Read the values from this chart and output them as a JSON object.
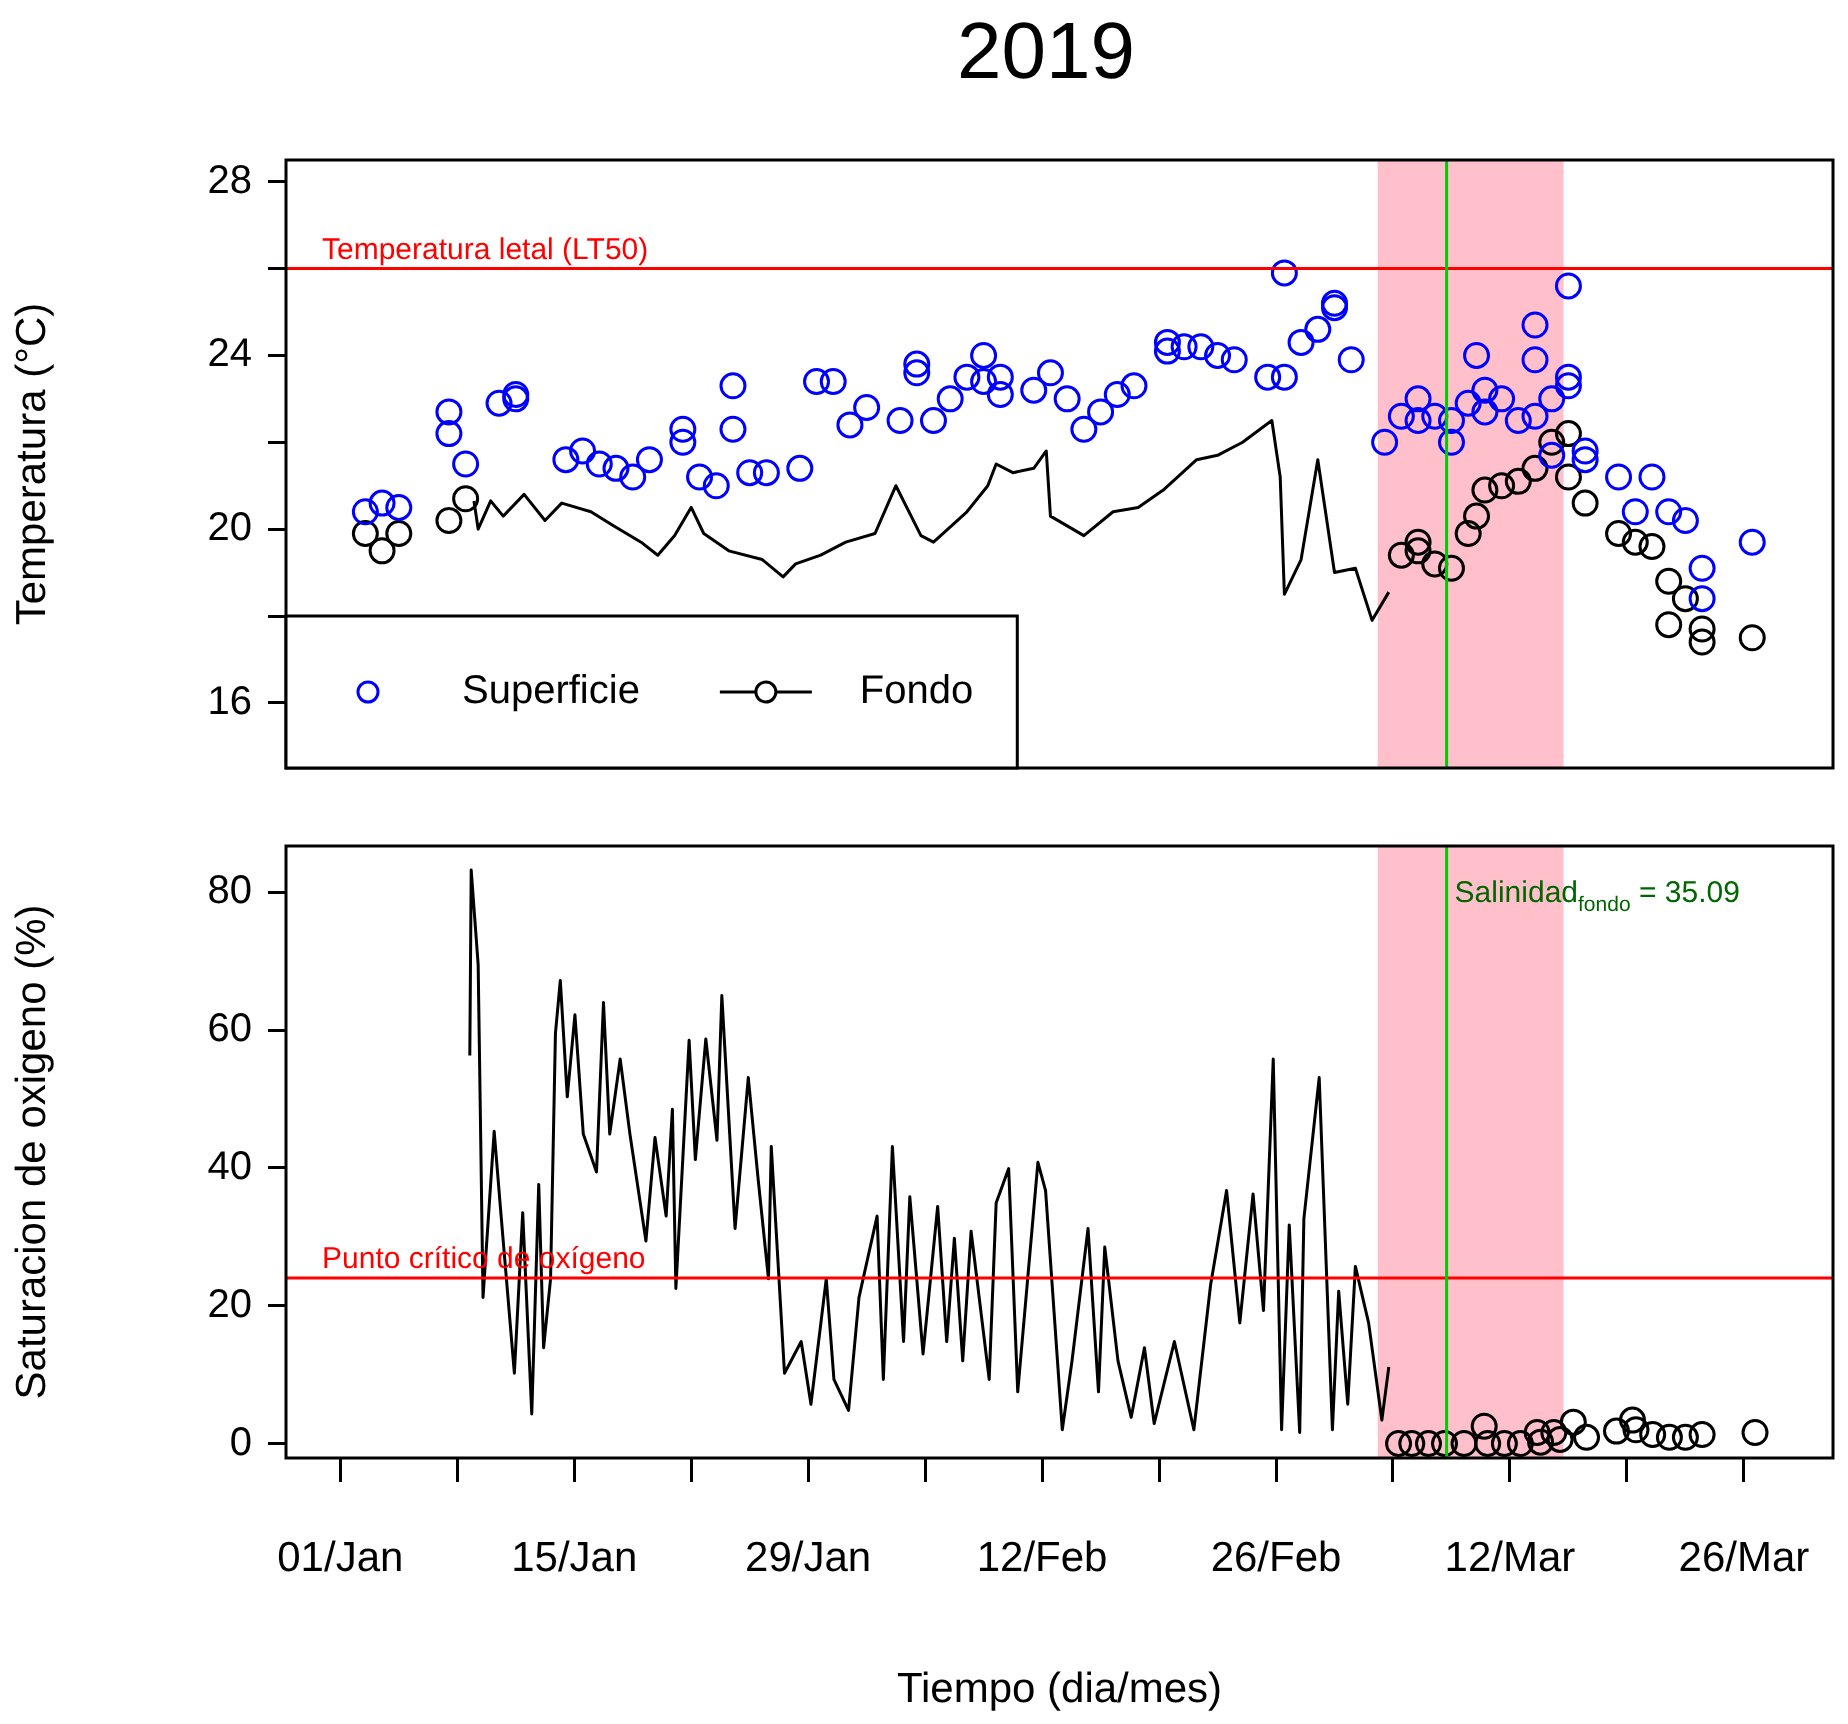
{
  "chart_data": [
    {
      "type": "scatter",
      "title": "2019",
      "ylabel": "Temperatura (°C)",
      "xlim": [
        "2018-12-28T18:00",
        "2019-03-31T08:00"
      ],
      "ylim": [
        14.5,
        28.5
      ],
      "yticks": [
        16,
        {
          "value": 18,
          "label": null
        },
        20,
        {
          "value": 22,
          "label": null
        },
        24,
        {
          "value": 26,
          "label": null
        },
        28
      ],
      "tick_labels": "y",
      "grid": false,
      "legend": "bottom left",
      "ref_lines": [
        {
          "axis": "y",
          "value": 26,
          "label": "Temperatura letal (LT50)",
          "color": "#ff0000"
        },
        {
          "axis": "x",
          "value": "2019-03-08T05:00",
          "color": "#00cc00"
        }
      ],
      "bands": [
        {
          "axis": "x",
          "from": "2019-03-04T02:00",
          "to": "2019-03-15T05:00",
          "color": "#ffc0cb"
        }
      ],
      "series": [
        {
          "name": "Superficie",
          "marker": "circle",
          "color": "#0000ff",
          "x": [
            "2019-01-02T12:00",
            "2019-01-03T12:00",
            "2019-01-04T12:00",
            "2019-01-07T12:00",
            "2019-01-07T12:00",
            "2019-01-08T12:00",
            "2019-01-10T12:00",
            "2019-01-11T12:00",
            "2019-01-11T12:00",
            "2019-01-14T12:00",
            "2019-01-15T12:00",
            "2019-01-16T12:00",
            "2019-01-17T12:00",
            "2019-01-18T12:00",
            "2019-01-19T12:00",
            "2019-01-21T12:00",
            "2019-01-21T12:00",
            "2019-01-22T12:00",
            "2019-01-23T12:00",
            "2019-01-24T12:00",
            "2019-01-24T12:00",
            "2019-01-25T12:00",
            "2019-01-26T12:00",
            "2019-01-28T12:00",
            "2019-01-29T12:00",
            "2019-01-30T12:00",
            "2019-01-31T12:00",
            "2019-02-01T12:00",
            "2019-02-03T12:00",
            "2019-02-04T12:00",
            "2019-02-04T12:00",
            "2019-02-05T12:00",
            "2019-02-06T12:00",
            "2019-02-07T12:00",
            "2019-02-08T12:00",
            "2019-02-08T12:00",
            "2019-02-09T12:00",
            "2019-02-09T12:00",
            "2019-02-11T12:00",
            "2019-02-12T12:00",
            "2019-02-13T12:00",
            "2019-02-14T12:00",
            "2019-02-15T12:00",
            "2019-02-16T12:00",
            "2019-02-17T12:00",
            "2019-02-19T12:00",
            "2019-02-19T12:00",
            "2019-02-20T12:00",
            "2019-02-21T12:00",
            "2019-02-22T12:00",
            "2019-02-23T12:00",
            "2019-02-25T12:00",
            "2019-02-26T12:00",
            "2019-02-26T12:00",
            "2019-02-27T12:00",
            "2019-02-28T12:00",
            "2019-03-01T12:00",
            "2019-03-01T12:00",
            "2019-03-02T12:00",
            "2019-03-04T12:00",
            "2019-03-05T12:00",
            "2019-03-06T12:00",
            "2019-03-06T12:00",
            "2019-03-07T12:00",
            "2019-03-08T12:00",
            "2019-03-08T12:00",
            "2019-03-09T12:00",
            "2019-03-10T00:00",
            "2019-03-10T12:00",
            "2019-03-10T12:00",
            "2019-03-11T12:00",
            "2019-03-12T12:00",
            "2019-03-13T12:00",
            "2019-03-13T12:00",
            "2019-03-13T12:00",
            "2019-03-14T12:00",
            "2019-03-14T12:00",
            "2019-03-15T12:00",
            "2019-03-15T12:00",
            "2019-03-15T12:00",
            "2019-03-16T12:00",
            "2019-03-16T12:00",
            "2019-03-18T12:00",
            "2019-03-19T12:00",
            "2019-03-20T12:00",
            "2019-03-21T12:00",
            "2019-03-22T12:00",
            "2019-03-23T12:00",
            "2019-03-23T12:00",
            "2019-03-26T12:00"
          ],
          "values": [
            20.4,
            20.6,
            20.5,
            22.7,
            22.2,
            21.5,
            22.9,
            23.0,
            23.1,
            21.6,
            21.8,
            21.5,
            21.4,
            21.2,
            21.6,
            22.3,
            22.0,
            21.2,
            21.0,
            23.3,
            22.3,
            21.3,
            21.3,
            21.4,
            23.4,
            23.4,
            22.4,
            22.8,
            22.5,
            23.8,
            23.6,
            22.5,
            23.0,
            23.5,
            23.4,
            24.0,
            23.5,
            23.1,
            23.2,
            23.6,
            23.0,
            22.3,
            22.7,
            23.1,
            23.3,
            24.3,
            24.1,
            24.2,
            24.2,
            24.0,
            23.9,
            23.5,
            23.5,
            25.9,
            24.3,
            24.6,
            25.1,
            25.2,
            23.9,
            22.0,
            22.6,
            23.0,
            22.5,
            22.6,
            22.5,
            22.0,
            22.9,
            24.0,
            23.2,
            22.7,
            23.0,
            22.5,
            24.7,
            23.9,
            22.6,
            23.0,
            21.7,
            25.6,
            23.5,
            23.3,
            21.8,
            21.6,
            21.2,
            20.4,
            21.2,
            20.4,
            20.2,
            19.1,
            18.4,
            19.7
          ]
        },
        {
          "name": "Fondo",
          "type": "line",
          "marker": "none",
          "color": "#000000",
          "x": [
            "2019-01-09T00:00",
            "2019-01-09T06:00",
            "2019-01-10T00:00",
            "2019-01-10T18:00",
            "2019-01-12T00:00",
            "2019-01-13T06:00",
            "2019-01-14T06:00",
            "2019-01-16T00:00",
            "2019-01-17T06:00",
            "2019-01-19T00:00",
            "2019-01-20T00:00",
            "2019-01-21T00:00",
            "2019-01-22T00:00",
            "2019-01-22T18:00",
            "2019-01-24T06:00",
            "2019-01-26T06:00",
            "2019-01-27T12:00",
            "2019-01-28T06:00",
            "2019-01-29T18:00",
            "2019-01-31T06:00",
            "2019-02-02T00:00",
            "2019-02-03T06:00",
            "2019-02-04T18:00",
            "2019-02-05T12:00",
            "2019-02-07T12:00",
            "2019-02-08T18:00",
            "2019-02-09T06:00",
            "2019-02-10T06:00",
            "2019-02-11T12:00",
            "2019-02-12T06:00",
            "2019-02-12T12:00",
            "2019-02-14T12:00",
            "2019-02-16T06:00",
            "2019-02-17T18:00",
            "2019-02-19T06:00",
            "2019-02-21T06:00",
            "2019-02-22T12:00",
            "2019-02-24T00:00",
            "2019-02-25T18:00",
            "2019-02-26T06:00",
            "2019-02-26T12:00",
            "2019-02-27T12:00",
            "2019-02-28T12:00",
            "2019-03-01T12:00",
            "2019-03-02T18:00",
            "2019-03-03T18:00",
            "2019-03-04T18:00"
          ],
          "values": [
            20.65,
            20.0,
            20.65,
            20.3,
            20.8,
            20.2,
            20.6,
            20.4,
            20.1,
            19.7,
            19.4,
            19.85,
            20.5,
            19.9,
            19.5,
            19.3,
            18.9,
            19.2,
            19.4,
            19.7,
            19.9,
            21.0,
            19.85,
            19.7,
            20.4,
            21.0,
            21.5,
            21.3,
            21.4,
            21.8,
            20.3,
            19.85,
            20.4,
            20.5,
            20.9,
            21.6,
            21.7,
            22.0,
            22.5,
            21.2,
            18.5,
            19.3,
            21.6,
            19.0,
            19.1,
            17.9,
            18.55
          ]
        },
        {
          "marker": "circle",
          "color": "#000000",
          "x": [
            "2019-01-02T12:00",
            "2019-01-03T12:00",
            "2019-01-04T12:00",
            "2019-01-07T12:00",
            "2019-01-08T12:00",
            "2019-03-05T12:00",
            "2019-03-06T12:00",
            "2019-03-06T12:00",
            "2019-03-07T12:00",
            "2019-03-08T12:00",
            "2019-03-09T12:00",
            "2019-03-10T00:00",
            "2019-03-10T12:00",
            "2019-03-11T12:00",
            "2019-03-12T12:00",
            "2019-03-13T12:00",
            "2019-03-14T12:00",
            "2019-03-15T12:00",
            "2019-03-15T12:00",
            "2019-03-16T12:00",
            "2019-03-18T12:00",
            "2019-03-19T12:00",
            "2019-03-20T12:00",
            "2019-03-21T12:00",
            "2019-03-21T12:00",
            "2019-03-22T12:00",
            "2019-03-23T12:00",
            "2019-03-23T12:00",
            "2019-03-26T12:00"
          ],
          "values": [
            19.9,
            19.5,
            19.9,
            20.2,
            20.7,
            19.4,
            19.7,
            19.5,
            19.2,
            19.1,
            19.9,
            20.3,
            20.9,
            21.0,
            21.1,
            21.4,
            22.0,
            22.2,
            21.2,
            20.6,
            19.9,
            19.7,
            19.6,
            18.8,
            17.8,
            18.4,
            17.7,
            17.4,
            17.5
          ]
        }
      ]
    },
    {
      "type": "line",
      "xlabel": "Tiempo (dia/mes)",
      "ylabel": "Saturacion de oxigeno (%)",
      "xlim": [
        "2018-12-28T18:00",
        "2019-03-31T08:00"
      ],
      "ylim": [
        -2.1,
        86.7
      ],
      "xticks": [
        {
          "value": "2019-01-01",
          "label": "01/Jan"
        },
        {
          "value": "2019-01-08",
          "label": null
        },
        {
          "value": "2019-01-15",
          "label": "15/Jan"
        },
        {
          "value": "2019-01-22",
          "label": null
        },
        {
          "value": "2019-01-29",
          "label": "29/Jan"
        },
        {
          "value": "2019-02-05",
          "label": null
        },
        {
          "value": "2019-02-12",
          "label": "12/Feb"
        },
        {
          "value": "2019-02-19",
          "label": null
        },
        {
          "value": "2019-02-26",
          "label": "26/Feb"
        },
        {
          "value": "2019-03-05",
          "label": null
        },
        {
          "value": "2019-03-12",
          "label": "12/Mar"
        },
        {
          "value": "2019-03-19",
          "label": null
        },
        {
          "value": "2019-03-26",
          "label": "26/Mar"
        }
      ],
      "yticks": [
        0,
        20,
        40,
        60,
        80
      ],
      "grid": false,
      "ref_lines": [
        {
          "axis": "y",
          "value": 24,
          "label": "Punto crítico de oxígeno",
          "color": "#ff0000"
        },
        {
          "axis": "x",
          "value": "2019-03-08T05:00",
          "label": "Salinidad$_{fondo}$ = 35.09",
          "color": "#00cc00"
        }
      ],
      "bands": [
        {
          "axis": "x",
          "from": "2019-03-04T02:00",
          "to": "2019-03-15T05:00",
          "color": "#ffc0cb"
        }
      ],
      "series": [
        {
          "marker": "none",
          "color": "#000000",
          "x": [
            "2019-01-08T18:00",
            "2019-01-08T20:00",
            "2019-01-09T06:00",
            "2019-01-09T13:00",
            "2019-01-10T05:00",
            "2019-01-10T15:00",
            "2019-01-11T10:00",
            "2019-01-11T22:00",
            "2019-01-12T11:00",
            "2019-01-12T21:00",
            "2019-01-13T04:00",
            "2019-01-13T14:00",
            "2019-01-13T21:00",
            "2019-01-14T04:00",
            "2019-01-14T14:00",
            "2019-01-15T01:00",
            "2019-01-15T13:00",
            "2019-01-16T08:00",
            "2019-01-16T18:00",
            "2019-01-17T03:00",
            "2019-01-17T18:00",
            "2019-01-18T08:00",
            "2019-01-19T07:00",
            "2019-01-19T20:00",
            "2019-01-20T12:00",
            "2019-01-20T21:00",
            "2019-01-21T02:00",
            "2019-01-21T21:00",
            "2019-01-22T06:00",
            "2019-01-22T21:00",
            "2019-01-23T13:00",
            "2019-01-23T20:00",
            "2019-01-24T15:00",
            "2019-01-25T10:00",
            "2019-01-26T00:00",
            "2019-01-26T15:00",
            "2019-01-26T19:00",
            "2019-01-27T14:00",
            "2019-01-28T14:00",
            "2019-01-29T04:00",
            "2019-01-30T02:00",
            "2019-01-30T13:00",
            "2019-01-31T10:00",
            "2019-02-01T01:00",
            "2019-02-02T03:00",
            "2019-02-02T12:00",
            "2019-02-03T01:00",
            "2019-02-03T17:00",
            "2019-02-04T02:00",
            "2019-02-04T21:00",
            "2019-02-05T18:00",
            "2019-02-06T07:00",
            "2019-02-06T18:00",
            "2019-02-07T06:00",
            "2019-02-07T18:00",
            "2019-02-08T20:00",
            "2019-02-09T06:00",
            "2019-02-10T00:00",
            "2019-02-10T13:00",
            "2019-02-11T18:00",
            "2019-02-12T05:00",
            "2019-02-13T05:00",
            "2019-02-13T19:00",
            "2019-02-14T18:00",
            "2019-02-15T09:00",
            "2019-02-15T18:00",
            "2019-02-16T13:00",
            "2019-02-17T08:00",
            "2019-02-18T03:00",
            "2019-02-18T17:00",
            "2019-02-19T22:00",
            "2019-02-21T02:00",
            "2019-02-22T02:00",
            "2019-02-23T01:00",
            "2019-02-23T20:00",
            "2019-02-24T15:00",
            "2019-02-25T06:00",
            "2019-02-25T20:00",
            "2019-02-26T08:00",
            "2019-02-26T19:00",
            "2019-02-27T10:00",
            "2019-02-27T16:00",
            "2019-02-28T14:00",
            "2019-03-01T09:00",
            "2019-03-01T18:00",
            "2019-03-02T07:00",
            "2019-03-02T18:00",
            "2019-03-03T13:00",
            "2019-03-04T08:00",
            "2019-03-04T18:00"
          ],
          "values": [
            56.3,
            83.2,
            69.5,
            21.2,
            45.3,
            33.0,
            10.2,
            33.5,
            4.3,
            37.6,
            13.9,
            23.9,
            59.5,
            67.2,
            50.3,
            62.2,
            44.9,
            39.4,
            64.0,
            44.9,
            55.8,
            44.9,
            29.4,
            44.4,
            33.0,
            48.5,
            22.5,
            58.5,
            41.2,
            58.7,
            44.0,
            65.0,
            31.2,
            53.1,
            38.5,
            23.9,
            43.1,
            10.2,
            14.8,
            5.7,
            23.9,
            9.3,
            4.8,
            21.2,
            33.0,
            9.3,
            43.1,
            14.8,
            35.8,
            13.0,
            34.4,
            14.8,
            29.8,
            12.0,
            30.8,
            9.3,
            34.9,
            39.9,
            7.5,
            40.8,
            36.7,
            2.0,
            12.0,
            31.2,
            7.5,
            28.5,
            12.0,
            3.8,
            13.9,
            2.9,
            14.8,
            2.0,
            23.0,
            36.7,
            17.5,
            36.2,
            19.3,
            55.8,
            2.0,
            31.7,
            1.6,
            32.6,
            53.1,
            2.0,
            22.1,
            5.7,
            25.7,
            17.5,
            3.4,
            11.1
          ]
        },
        {
          "type": "scatter",
          "marker": "circle",
          "color": "#000000",
          "x": [
            "2019-03-05T08:00",
            "2019-03-06T03:00",
            "2019-03-07T03:00",
            "2019-03-08T02:00",
            "2019-03-09T06:00",
            "2019-03-10T11:00",
            "2019-03-10T16:00",
            "2019-03-11T16:00",
            "2019-03-12T15:00",
            "2019-03-13T15:00",
            "2019-03-13T20:00",
            "2019-03-14T15:00",
            "2019-03-15T00:00",
            "2019-03-15T19:00",
            "2019-03-16T14:00",
            "2019-03-18T09:00",
            "2019-03-19T08:00",
            "2019-03-19T13:00",
            "2019-03-20T13:00",
            "2019-03-21T13:00",
            "2019-03-22T12:00",
            "2019-03-23T12:00",
            "2019-03-26T16:00"
          ],
          "values": [
            0,
            0,
            0,
            0,
            0,
            2.5,
            0,
            0,
            0,
            1.6,
            0.2,
            1.6,
            0.6,
            3.1,
            0.9,
            1.8,
            3.4,
            2.0,
            1.3,
            0.9,
            0.9,
            1.3,
            1.6
          ]
        }
      ]
    }
  ]
}
